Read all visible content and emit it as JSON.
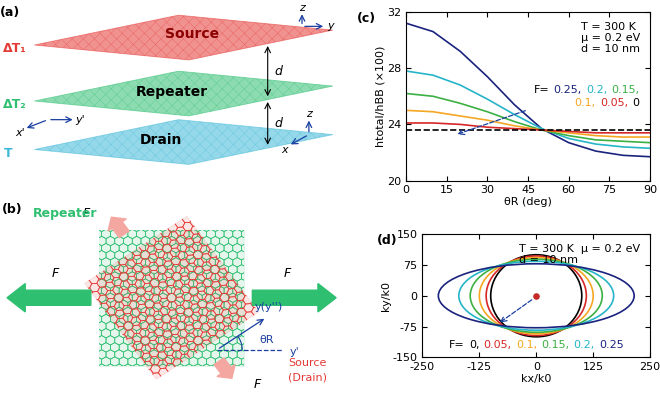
{
  "diagrams": {
    "a": {
      "panel_label": "(a)",
      "layers": [
        {
          "label": "Source",
          "color": "#e53935",
          "temperature": "ΔT₁"
        },
        {
          "label": "Repeater",
          "color": "#2fbf71",
          "temperature": "ΔT₂"
        },
        {
          "label": "Drain",
          "color": "#3fb8d8",
          "temperature": "T"
        }
      ],
      "gap_labels": [
        "d",
        "d"
      ],
      "axis_labels": {
        "source": [
          "z",
          "y"
        ],
        "repeater": [
          "x'",
          "y'"
        ],
        "drain": [
          "z",
          "x"
        ]
      }
    },
    "b": {
      "panel_label": "(b)",
      "repeater_label": "Repeater",
      "repeater_color": "#2fbf71",
      "source_label": "Source",
      "drain_label": "(Drain)",
      "source_color": "#e53935",
      "force_labels": [
        "F",
        "F",
        "F",
        "F"
      ],
      "angle_label": "θR",
      "axis_labels": [
        "y(y'')",
        "y'"
      ]
    }
  },
  "chart_data": [
    {
      "type": "line",
      "panel_label": "(c)",
      "x_label": "θR (deg)",
      "y_label": "htotal/hBB (×100)",
      "xlim": [
        0,
        90
      ],
      "xticks": [
        0,
        15,
        30,
        45,
        60,
        75,
        90
      ],
      "ylim": [
        20,
        32
      ],
      "yticks": [
        20,
        24,
        28,
        32
      ],
      "x": [
        0,
        10,
        20,
        30,
        40,
        50,
        60,
        70,
        80,
        90
      ],
      "legend_prefix": "F=",
      "legend": "center right",
      "annotations": [
        "T = 300 K",
        "μ = 0.2 eV",
        "d = 10 nm"
      ],
      "series": [
        {
          "name": "0.25,",
          "color": "#1a237e",
          "line_style": "solid",
          "values": [
            31.2,
            30.6,
            29.2,
            27.4,
            25.4,
            23.7,
            22.7,
            22.1,
            21.8,
            21.7
          ]
        },
        {
          "name": "0.2,",
          "color": "#26b5c8",
          "line_style": "solid",
          "values": [
            27.8,
            27.5,
            26.8,
            25.8,
            24.7,
            23.7,
            23.0,
            22.6,
            22.4,
            22.3
          ]
        },
        {
          "name": "0.15,",
          "color": "#3cb043",
          "line_style": "solid",
          "values": [
            26.2,
            26.0,
            25.5,
            24.9,
            24.2,
            23.6,
            23.2,
            22.9,
            22.8,
            22.7
          ]
        },
        {
          "name": "0.1,",
          "color": "#f5a623",
          "line_style": "solid",
          "values": [
            25.0,
            24.9,
            24.6,
            24.3,
            23.9,
            23.6,
            23.4,
            23.2,
            23.1,
            23.1
          ]
        },
        {
          "name": "0.05,",
          "color": "#d62728",
          "line_style": "solid",
          "values": [
            24.1,
            24.1,
            24.0,
            23.8,
            23.7,
            23.6,
            23.5,
            23.4,
            23.4,
            23.4
          ]
        },
        {
          "name": "0",
          "color": "#000000",
          "line_style": "dashed",
          "values": [
            23.6,
            23.6,
            23.6,
            23.6,
            23.6,
            23.6,
            23.6,
            23.6,
            23.6,
            23.6
          ]
        }
      ]
    },
    {
      "type": "ellipse",
      "panel_label": "(d)",
      "x_label": "kx/k0",
      "y_label": "ky/k0",
      "xlim": [
        -250,
        250
      ],
      "xticks": [
        -250,
        -125,
        0,
        125,
        250
      ],
      "ylim": [
        -150,
        150
      ],
      "yticks": [
        -150,
        -75,
        0,
        75,
        150
      ],
      "legend_prefix": "F=",
      "legend": "lower center",
      "annotations": [
        "T = 300 K  μ = 0.2 eV",
        "d = 10 nm"
      ],
      "center": [
        0,
        0
      ],
      "center_color": "#c62828",
      "series": [
        {
          "name": "0,",
          "color": "#000000",
          "semi_axis_x": 100,
          "semi_axis_y": 100
        },
        {
          "name": "0.05,",
          "color": "#d62728",
          "semi_axis_x": 110,
          "semi_axis_y": 97
        },
        {
          "name": "0.1,",
          "color": "#f5a623",
          "semi_axis_x": 125,
          "semi_axis_y": 93
        },
        {
          "name": "0.15,",
          "color": "#3cb043",
          "semi_axis_x": 145,
          "semi_axis_y": 89
        },
        {
          "name": "0.2,",
          "color": "#26b5c8",
          "semi_axis_x": 170,
          "semi_axis_y": 84
        },
        {
          "name": "0.25",
          "color": "#1a237e",
          "semi_axis_x": 215,
          "semi_axis_y": 78
        }
      ]
    }
  ]
}
